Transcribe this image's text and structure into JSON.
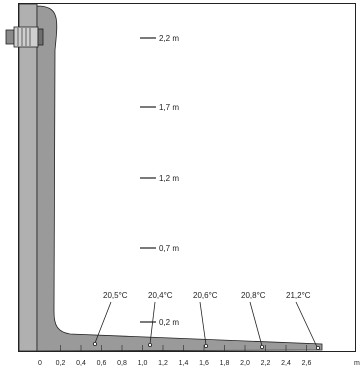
{
  "colors": {
    "wall": "#b0b0b0",
    "airflow": "#9a9a9a",
    "stroke": "#222222",
    "background": "#ffffff"
  },
  "heights": [
    {
      "label": "2,2 m"
    },
    {
      "label": "1,7 m"
    },
    {
      "label": "1,2 m"
    },
    {
      "label": "0,7 m"
    },
    {
      "label": "0,2 m"
    }
  ],
  "temperatures": [
    {
      "label": "20,5°C"
    },
    {
      "label": "20,4°C"
    },
    {
      "label": "20,6°C"
    },
    {
      "label": "20,8°C"
    },
    {
      "label": "21,2°C"
    }
  ],
  "x_axis": {
    "ticks": [
      "0",
      "0,2",
      "0,4",
      "0,6",
      "0,8",
      "1,0",
      "1,2",
      "1,4",
      "1,6",
      "1,8",
      "2,0",
      "2,2",
      "2,4",
      "2,6"
    ],
    "unit": "m"
  },
  "icons": {
    "vent": "wall-air-outlet-icon"
  }
}
